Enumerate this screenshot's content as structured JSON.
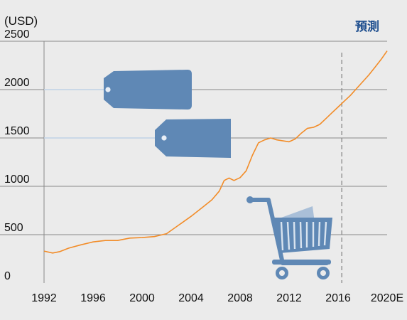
{
  "chart_data": {
    "type": "line",
    "unit_label": "(USD)",
    "forecast_label": "預測",
    "x_tick_labels": [
      "1992",
      "1996",
      "2000",
      "2004",
      "2008",
      "2012",
      "2016",
      "2020E"
    ],
    "x_ticks": [
      1992,
      1996,
      2000,
      2004,
      2008,
      2012,
      2016,
      2020
    ],
    "y_ticks": [
      0,
      500,
      1000,
      1500,
      2000,
      2500
    ],
    "xlim": [
      1992,
      2020
    ],
    "ylim": [
      0,
      2500
    ],
    "forecast_start": 2016.3,
    "grid": true,
    "line_color": "#f28c28",
    "series": [
      {
        "x": [
          1992,
          1992.7,
          1993.3,
          1994,
          1995,
          1996,
          1997,
          1998,
          1999,
          2000,
          2001,
          2002,
          2003,
          2004,
          2005,
          2005.7,
          2006.3,
          2006.7,
          2007.1,
          2007.5,
          2008,
          2008.5,
          2009,
          2009.5,
          2010,
          2010.5,
          2011,
          2011.5,
          2012,
          2012.5,
          2013,
          2013.5,
          2014,
          2014.5,
          2015,
          2015.5,
          2016,
          2016.5,
          2017,
          2017.5,
          2018,
          2018.5,
          2019,
          2019.5,
          2020
        ],
        "values": [
          330,
          310,
          325,
          360,
          395,
          425,
          440,
          440,
          465,
          470,
          480,
          510,
          600,
          690,
          790,
          860,
          950,
          1060,
          1085,
          1060,
          1090,
          1160,
          1320,
          1450,
          1480,
          1500,
          1480,
          1470,
          1460,
          1490,
          1550,
          1600,
          1610,
          1640,
          1700,
          1760,
          1820,
          1880,
          1940,
          2010,
          2080,
          2150,
          2230,
          2310,
          2400
        ]
      }
    ],
    "colors": {
      "background": "#ebebeb",
      "grid": "#888888",
      "tag": "#5f88b5",
      "cart": "#5f88b5",
      "forecast_text": "#1f4f8f"
    },
    "icons": [
      "price-tag-icon",
      "price-tag-icon",
      "shopping-cart-icon"
    ]
  }
}
